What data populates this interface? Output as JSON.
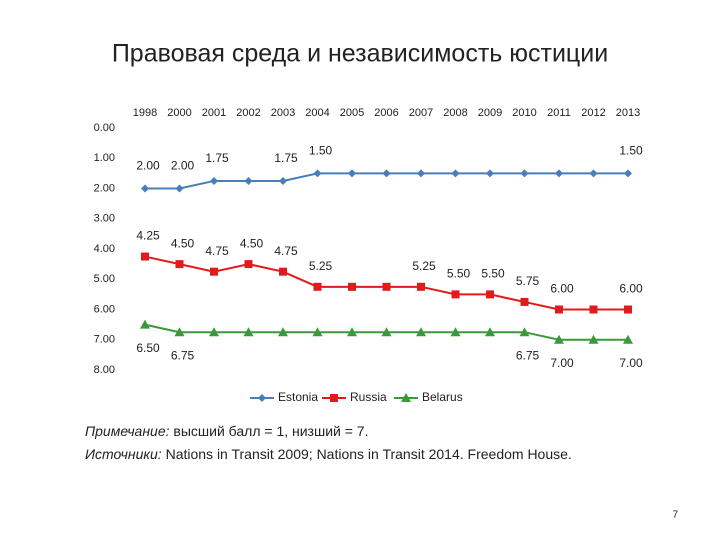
{
  "title": "Правовая среда и независимость юстиции",
  "chart_data": {
    "type": "line",
    "categories": [
      "1998",
      "2000",
      "2001",
      "2002",
      "2003",
      "2004",
      "2005",
      "2006",
      "2007",
      "2008",
      "2009",
      "2010",
      "2011",
      "2012",
      "2013"
    ],
    "ylim": [
      0,
      8
    ],
    "y_inverted": true,
    "yticks": [
      {
        "value": 0,
        "label": "0.00"
      },
      {
        "value": 1,
        "label": "1.00"
      },
      {
        "value": 2,
        "label": "2.00"
      },
      {
        "value": 3,
        "label": "3.00"
      },
      {
        "value": 4,
        "label": "4.00"
      },
      {
        "value": 5,
        "label": "5.00"
      },
      {
        "value": 6,
        "label": "6.00"
      },
      {
        "value": 7,
        "label": "7.00"
      },
      {
        "value": 8,
        "label": "8.00"
      }
    ],
    "legend": "bottom",
    "series": [
      {
        "name": "Estonia",
        "color": "#4a7ebb",
        "marker": "diamond",
        "values": [
          2,
          2,
          1.75,
          1.75,
          1.75,
          1.5,
          1.5,
          1.5,
          1.5,
          1.5,
          1.5,
          1.5,
          1.5,
          1.5,
          1.5
        ],
        "value_labels": [
          "2.00",
          "2.00",
          "1.75",
          null,
          "1.75",
          "1.50",
          null,
          null,
          null,
          null,
          null,
          null,
          null,
          null,
          "1.50"
        ]
      },
      {
        "name": "Russia",
        "color": "#e31a1c",
        "marker": "square",
        "values": [
          4.25,
          4.5,
          4.75,
          4.5,
          4.75,
          5.25,
          5.25,
          5.25,
          5.25,
          5.5,
          5.5,
          5.75,
          6,
          6,
          6
        ],
        "value_labels": [
          "4.25",
          "4.50",
          "4.75",
          "4.50",
          "4.75",
          "5.25",
          null,
          null,
          "5.25",
          "5.50",
          "5.50",
          "5.75",
          "6.00",
          null,
          "6.00"
        ]
      },
      {
        "name": "Belarus",
        "color": "#3a9a3a",
        "marker": "triangle",
        "values": [
          6.5,
          6.75,
          6.75,
          6.75,
          6.75,
          6.75,
          6.75,
          6.75,
          6.75,
          6.75,
          6.75,
          6.75,
          7,
          7,
          7
        ],
        "value_labels": [
          "6.50",
          "6.75",
          null,
          null,
          null,
          null,
          null,
          null,
          null,
          null,
          null,
          "6.75",
          "7.00",
          null,
          "7.00"
        ]
      }
    ]
  },
  "notes": [
    {
      "label": "Примечание:",
      "text": " высший балл = 1, низший = 7."
    },
    {
      "label": "Источники:",
      "text": " Nations in Transit 2009; Nations in Transit 2014. Freedom House."
    }
  ],
  "page_number": "7"
}
